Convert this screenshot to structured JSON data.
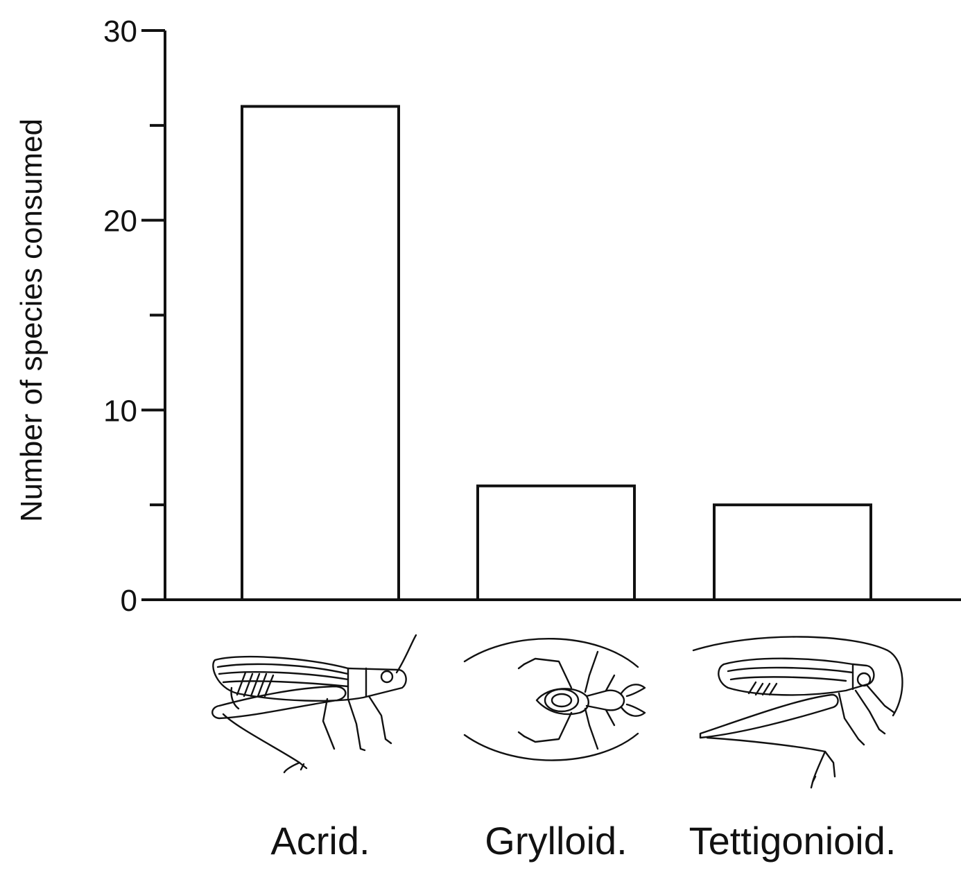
{
  "chart_data": {
    "type": "bar",
    "categories": [
      "Acrid.",
      "Grylloid.",
      "Tettigonioid."
    ],
    "values": [
      26,
      6,
      5
    ],
    "title": "",
    "xlabel": "",
    "ylabel": "Number of species consumed",
    "ylim": [
      0,
      30
    ],
    "yticks": [
      0,
      10,
      20,
      30
    ],
    "yticks_minor": [
      5,
      15,
      25
    ],
    "grid": false,
    "legend": "none",
    "bar_fill": "#ffffff",
    "bar_stroke": "#111111",
    "category_icons": [
      "grasshopper-icon",
      "cricket-icon",
      "katydid-icon"
    ]
  }
}
